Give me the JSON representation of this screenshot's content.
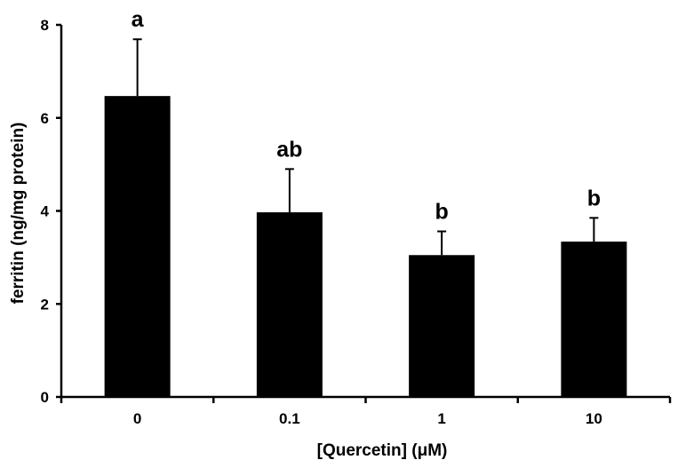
{
  "chart_data": {
    "type": "bar",
    "title": "",
    "xlabel": "[Quercetin] (μM)",
    "ylabel": "ferritin (ng/mg protein)",
    "categories": [
      "0",
      "0.1",
      "1",
      "10"
    ],
    "values": [
      6.47,
      3.97,
      3.05,
      3.34
    ],
    "errors": [
      1.22,
      0.93,
      0.51,
      0.51
    ],
    "significance_labels": [
      "a",
      "ab",
      "b",
      "b"
    ],
    "ylim": [
      0,
      8
    ],
    "yticks": [
      "0",
      "2",
      "4",
      "6",
      "8"
    ],
    "grid": false,
    "legend": "none",
    "bar_color": "#000000"
  }
}
